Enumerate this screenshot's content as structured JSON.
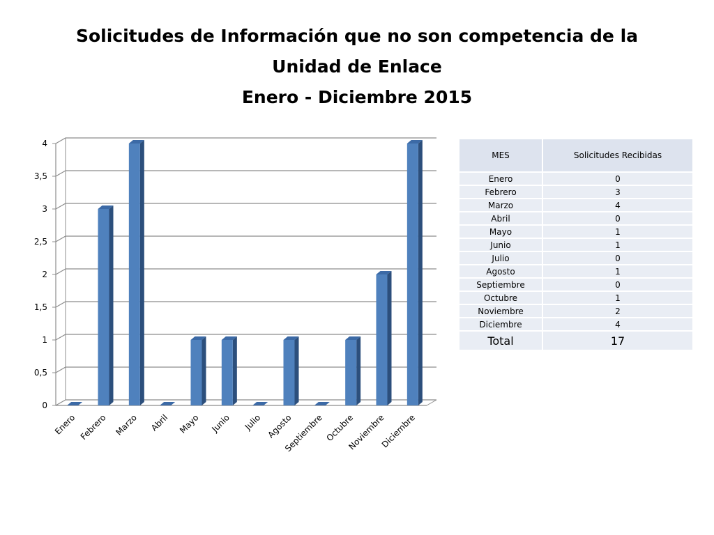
{
  "title": {
    "line1": "Solicitudes de Información que no son competencia de la",
    "line2": "Unidad de Enlace",
    "line3": "Enero - Diciembre 2015"
  },
  "chart_data": {
    "type": "bar",
    "categories": [
      "Enero",
      "Febrero",
      "Marzo",
      "Abril",
      "Mayo",
      "Junio",
      "Julio",
      "Agosto",
      "Septiembre",
      "Octubre",
      "Noviembre",
      "Diciembre"
    ],
    "values": [
      0,
      3,
      4,
      0,
      1,
      1,
      0,
      1,
      0,
      1,
      2,
      4
    ],
    "ylim": [
      0,
      4
    ],
    "yticks": [
      "0",
      "0,5",
      "1",
      "1,5",
      "2",
      "2,5",
      "3",
      "3,5",
      "4"
    ],
    "grid": true,
    "bar_color": "#4f81bd"
  },
  "table": {
    "headers": [
      "MES",
      "Solicitudes Recibidas"
    ],
    "rows": [
      [
        "Enero",
        "0"
      ],
      [
        "Febrero",
        "3"
      ],
      [
        "Marzo",
        "4"
      ],
      [
        "Abril",
        "0"
      ],
      [
        "Mayo",
        "1"
      ],
      [
        "Junio",
        "1"
      ],
      [
        "Julio",
        "0"
      ],
      [
        "Agosto",
        "1"
      ],
      [
        "Septiembre",
        "0"
      ],
      [
        "Octubre",
        "1"
      ],
      [
        "Noviembre",
        "2"
      ],
      [
        "Diciembre",
        "4"
      ]
    ],
    "total_label": "Total",
    "total_value": "17"
  }
}
